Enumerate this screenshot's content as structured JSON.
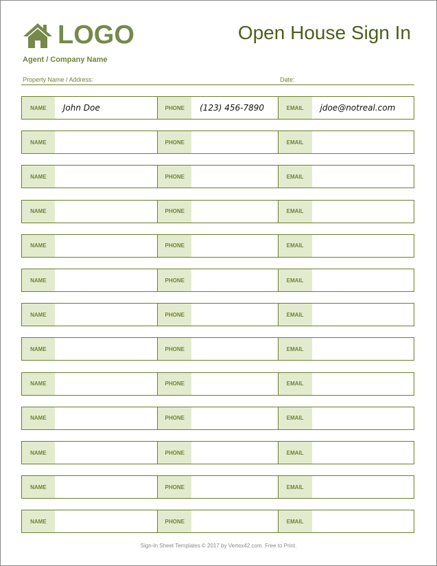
{
  "header": {
    "logo_text": "LOGO",
    "title": "Open House Sign In",
    "agent": "Agent / Company Name",
    "property_label": "Property Name / Address:",
    "date_label": "Date:"
  },
  "labels": {
    "name": "NAME",
    "phone": "PHONE",
    "email": "EMAIL"
  },
  "rows": [
    {
      "name": "John Doe",
      "phone": "(123) 456-7890",
      "email": "jdoe@notreal.com"
    },
    {
      "name": "",
      "phone": "",
      "email": ""
    },
    {
      "name": "",
      "phone": "",
      "email": ""
    },
    {
      "name": "",
      "phone": "",
      "email": ""
    },
    {
      "name": "",
      "phone": "",
      "email": ""
    },
    {
      "name": "",
      "phone": "",
      "email": ""
    },
    {
      "name": "",
      "phone": "",
      "email": ""
    },
    {
      "name": "",
      "phone": "",
      "email": ""
    },
    {
      "name": "",
      "phone": "",
      "email": ""
    },
    {
      "name": "",
      "phone": "",
      "email": ""
    },
    {
      "name": "",
      "phone": "",
      "email": ""
    },
    {
      "name": "",
      "phone": "",
      "email": ""
    },
    {
      "name": "",
      "phone": "",
      "email": ""
    }
  ],
  "footer": "Sign-In Sheet Templates © 2017 by Vertex42.com. Free to Print.",
  "colors": {
    "accent": "#6b7d2a",
    "label_bg": "#e3ebcf",
    "logo": "#76894a",
    "title": "#4b5e1c"
  }
}
